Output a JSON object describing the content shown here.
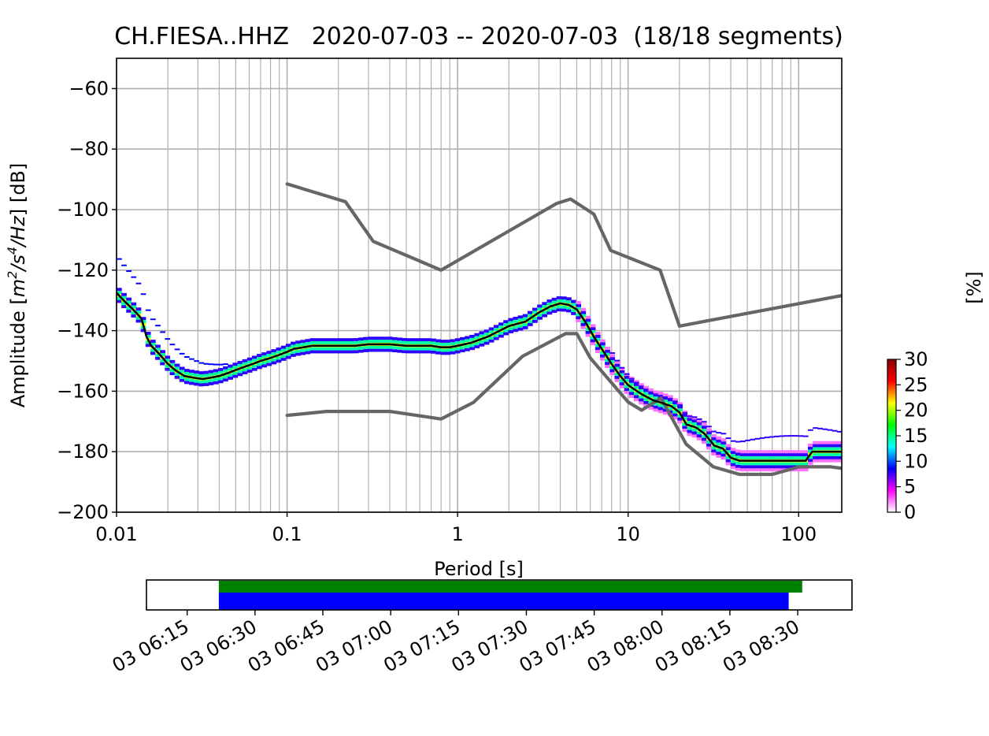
{
  "chart_data": [
    {
      "type": "line",
      "title": "CH.FIESA..HHZ   2020-07-03 -- 2020-07-03  (18/18 segments)",
      "xlabel": "Period [s]",
      "ylabel_parts": [
        "Amplitude [",
        "m",
        "2",
        "/",
        "s",
        "4",
        "/",
        "Hz",
        "] [dB]"
      ],
      "x_scale": "log",
      "xlim": [
        0.01,
        179
      ],
      "ylim": [
        -200,
        -50
      ],
      "x_ticks": [
        {
          "value": 0.01,
          "label": "0.01"
        },
        {
          "value": 0.1,
          "label": "0.1"
        },
        {
          "value": 1,
          "label": "1"
        },
        {
          "value": 10,
          "label": "10"
        },
        {
          "value": 100,
          "label": "100"
        }
      ],
      "y_ticks": [
        {
          "value": -60,
          "label": "−60"
        },
        {
          "value": -80,
          "label": "−80"
        },
        {
          "value": -100,
          "label": "−100"
        },
        {
          "value": -120,
          "label": "−120"
        },
        {
          "value": -140,
          "label": "−140"
        },
        {
          "value": -160,
          "label": "−160"
        },
        {
          "value": -180,
          "label": "−180"
        },
        {
          "value": -200,
          "label": "−200"
        }
      ],
      "grid": true,
      "series": [
        {
          "color": "#666666",
          "x": [
            0.1,
            0.22,
            0.32,
            0.8,
            3.8,
            4.6,
            6.3,
            7.9,
            15.4,
            20,
            176
          ],
          "y": [
            -91.5,
            -97.4,
            -110.5,
            -120,
            -98,
            -96.5,
            -101.5,
            -113.5,
            -120,
            -138.5,
            -128.5
          ]
        },
        {
          "color": "#666666",
          "x": [
            0.1,
            0.17,
            0.4,
            0.8,
            1.24,
            2.4,
            4.3,
            5,
            6,
            10,
            12,
            15.6,
            21.9,
            31.6,
            45,
            70,
            101,
            154,
            179
          ],
          "y": [
            -168,
            -166.7,
            -166.7,
            -169.2,
            -163.7,
            -148.5,
            -141,
            -141,
            -149,
            -163.6,
            -166.3,
            -162.3,
            -177.5,
            -185,
            -187.5,
            -187.5,
            -185,
            -185,
            -185.5
          ]
        },
        {
          "color": "#000000",
          "x": [
            0.01,
            0.011,
            0.012,
            0.013,
            0.014,
            0.015,
            0.016,
            0.018,
            0.02,
            0.022,
            0.025,
            0.028,
            0.032,
            0.036,
            0.04,
            0.045,
            0.05,
            0.056,
            0.063,
            0.07,
            0.08,
            0.09,
            0.1,
            0.11,
            0.125,
            0.14,
            0.16,
            0.18,
            0.2,
            0.25,
            0.3,
            0.4,
            0.5,
            0.6,
            0.7,
            0.8,
            0.9,
            1,
            1.2,
            1.5,
            2,
            2.5,
            3,
            3.5,
            4,
            4.5,
            5,
            5.6,
            6.3,
            7,
            8,
            9,
            10,
            12,
            14,
            16,
            18,
            20,
            22,
            25,
            28,
            32,
            36,
            40,
            45,
            50,
            63,
            80,
            100,
            110,
            120,
            140,
            179
          ],
          "y": [
            -127.5,
            -130,
            -132,
            -134,
            -136,
            -142,
            -145,
            -148,
            -151,
            -153,
            -155,
            -155.5,
            -156,
            -155.5,
            -155,
            -154,
            -153,
            -152,
            -151,
            -150,
            -149,
            -148,
            -147,
            -146,
            -145.5,
            -145,
            -145,
            -145,
            -145,
            -145,
            -144.5,
            -144.5,
            -145,
            -145,
            -145,
            -145.5,
            -145.5,
            -145,
            -144,
            -142,
            -138.5,
            -137,
            -134,
            -132,
            -131,
            -131.5,
            -133,
            -137,
            -142,
            -146,
            -151,
            -155,
            -158,
            -161,
            -163,
            -164,
            -165,
            -167,
            -171,
            -172,
            -174,
            -178,
            -179,
            -182,
            -183,
            -183,
            -183,
            -183,
            -183,
            -183,
            -180,
            -180,
            -180
          ]
        }
      ],
      "colorbar": {
        "label": "[%]",
        "min": 0,
        "max": 30,
        "ticks": [
          {
            "value": 0,
            "label": "0"
          },
          {
            "value": 5,
            "label": "5"
          },
          {
            "value": 10,
            "label": "10"
          },
          {
            "value": 15,
            "label": "15"
          },
          {
            "value": 20,
            "label": "20"
          },
          {
            "value": 25,
            "label": "25"
          },
          {
            "value": 30,
            "label": "30"
          }
        ],
        "colors": [
          "#ffffff",
          "#ff00ff",
          "#0000ff",
          "#00ffff",
          "#00ff00",
          "#ffff00",
          "#ff0000",
          "#880000"
        ]
      }
    },
    {
      "type": "bar",
      "title": "",
      "xlim_hours": [
        6.1,
        8.7
      ],
      "x_ticks": [
        {
          "value": 6.25,
          "label": "03 06:15"
        },
        {
          "value": 6.5,
          "label": "03 06:30"
        },
        {
          "value": 6.75,
          "label": "03 06:45"
        },
        {
          "value": 7.0,
          "label": "03 07:00"
        },
        {
          "value": 7.25,
          "label": "03 07:15"
        },
        {
          "value": 7.5,
          "label": "03 07:30"
        },
        {
          "value": 7.75,
          "label": "03 07:45"
        },
        {
          "value": 8.0,
          "label": "03 08:00"
        },
        {
          "value": 8.25,
          "label": "03 08:15"
        },
        {
          "value": 8.5,
          "label": "03 08:30"
        }
      ],
      "bars": [
        {
          "color": "#008000",
          "start": "06:22",
          "end": "08:31"
        },
        {
          "color": "#0000ff",
          "start": "06:22",
          "end": "08:28"
        }
      ]
    }
  ]
}
